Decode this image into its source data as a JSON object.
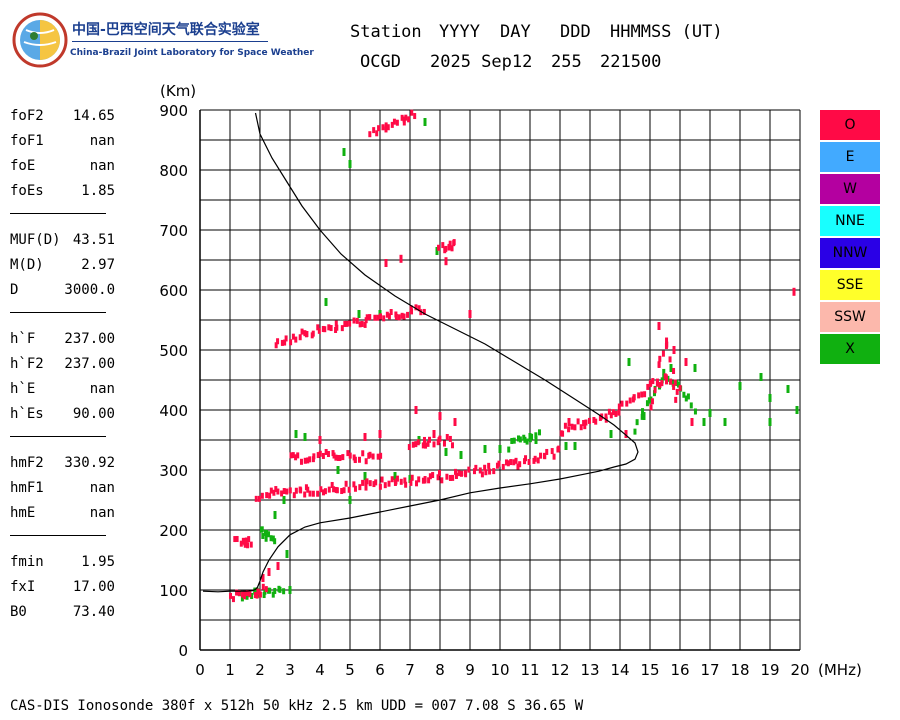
{
  "logo": {
    "chinese_name": "中国-巴西空间天气联合实验室",
    "english_name": "China-Brazil Joint Laboratory for Space Weather"
  },
  "header": {
    "labels": [
      "Station",
      "YYYY",
      "DAY",
      "DDD",
      "HHMMSS (UT)"
    ],
    "values": [
      "OCGD",
      "2025 Sep12",
      "255",
      "221500"
    ]
  },
  "params": {
    "groups": [
      [
        {
          "name": "foF2",
          "value": "14.65"
        },
        {
          "name": "foF1",
          "value": "nan"
        },
        {
          "name": "foE",
          "value": "nan"
        },
        {
          "name": "foEs",
          "value": "1.85"
        }
      ],
      [
        {
          "name": "MUF(D)",
          "value": "43.51"
        },
        {
          "name": "M(D)",
          "value": "2.97"
        },
        {
          "name": "D",
          "value": "3000.0"
        }
      ],
      [
        {
          "name": "h`F",
          "value": "237.00"
        },
        {
          "name": "h`F2",
          "value": "237.00"
        },
        {
          "name": "h`E",
          "value": "nan"
        },
        {
          "name": "h`Es",
          "value": "90.00"
        }
      ],
      [
        {
          "name": "hmF2",
          "value": "330.92"
        },
        {
          "name": "hmF1",
          "value": "nan"
        },
        {
          "name": "hmE",
          "value": "nan"
        }
      ],
      [
        {
          "name": "fmin",
          "value": "1.95"
        },
        {
          "name": "fxI",
          "value": "17.00"
        },
        {
          "name": "B0",
          "value": "73.40"
        }
      ]
    ]
  },
  "legend": [
    {
      "label": "O",
      "color": "#ff0a46"
    },
    {
      "label": "E",
      "color": "#42aaff"
    },
    {
      "label": "W",
      "color": "#b400a0"
    },
    {
      "label": "NNE",
      "color": "#18ffff"
    },
    {
      "label": "NNW",
      "color": "#2a00e6"
    },
    {
      "label": "SSE",
      "color": "#ffff2a"
    },
    {
      "label": "SSW",
      "color": "#fcb8ac"
    },
    {
      "label": "X",
      "color": "#10b010"
    }
  ],
  "footer": "CAS-DIS Ionosonde 380f x 512h 50 kHz 2.5 km UDD = 007 7.08 S 36.65 W",
  "chart_data": {
    "type": "scatter",
    "xlabel": "(MHz)",
    "ylabel": "(Km)",
    "xlim": [
      0,
      20
    ],
    "ylim": [
      0,
      900
    ],
    "xticks": [
      0,
      1,
      2,
      3,
      4,
      5,
      6,
      7,
      8,
      9,
      10,
      11,
      12,
      13,
      14,
      15,
      16,
      17,
      18,
      19,
      20
    ],
    "yticks": [
      0,
      100,
      200,
      300,
      400,
      500,
      600,
      700,
      800,
      900
    ],
    "grid": true,
    "series": [
      {
        "name": "O",
        "traces": [
          {
            "x": [
              1.0,
              1.5,
              1.9,
              2.2
            ],
            "y": [
              90,
              92,
              95,
              100
            ]
          },
          {
            "x": [
              1.2,
              1.5,
              1.7
            ],
            "y": [
              180,
              180,
              182
            ]
          },
          {
            "x": [
              1.9,
              2.5,
              3.5,
              4.5,
              5.5,
              6.5,
              7.5,
              8.5,
              9.5,
              10.5,
              11.5,
              12.0
            ],
            "y": [
              255,
              262,
              265,
              270,
              275,
              280,
              285,
              292,
              300,
              310,
              322,
              332
            ]
          },
          {
            "x": [
              12.0,
              12.8,
              13.5,
              14.0,
              14.5,
              15.0,
              15.5,
              16.0
            ],
            "y": [
              365,
              378,
              390,
              400,
              420,
              440,
              450,
              430
            ]
          },
          {
            "x": [
              3.0,
              3.8,
              4.5,
              5.2,
              6.0
            ],
            "y": [
              318,
              322,
              325,
              322,
              320
            ]
          },
          {
            "x": [
              7.0,
              7.5,
              8.0,
              8.4
            ],
            "y": [
              340,
              345,
              352,
              345
            ]
          },
          {
            "x": [
              2.5,
              3.5,
              4.5,
              5.5,
              6.5,
              7.5
            ],
            "y": [
              510,
              528,
              538,
              548,
              558,
              568
            ]
          },
          {
            "x": [
              5.7,
              6.2,
              6.8,
              7.2
            ],
            "y": [
              860,
              870,
              885,
              895
            ]
          },
          {
            "x": [
              8.0,
              8.3,
              8.5
            ],
            "y": [
              668,
              672,
              676
            ]
          },
          {
            "x": [
              15.0,
              15.3,
              15.6,
              15.9
            ],
            "y": [
              400,
              470,
              510,
              420
            ]
          }
        ],
        "points": [
          [
            1.5,
            180
          ],
          [
            2.1,
            120
          ],
          [
            2.3,
            130
          ],
          [
            2.6,
            140
          ],
          [
            4.0,
            350
          ],
          [
            5.5,
            355
          ],
          [
            6.0,
            360
          ],
          [
            7.2,
            400
          ],
          [
            8.0,
            390
          ],
          [
            8.5,
            380
          ],
          [
            6.2,
            645
          ],
          [
            6.7,
            652
          ],
          [
            8.2,
            648
          ],
          [
            9.0,
            560
          ],
          [
            19.8,
            597
          ],
          [
            15.3,
            540
          ],
          [
            15.8,
            500
          ],
          [
            16.2,
            480
          ],
          [
            16.4,
            380
          ],
          [
            14.2,
            360
          ],
          [
            12.3,
            380
          ],
          [
            7.8,
            360
          ]
        ]
      },
      {
        "name": "X",
        "traces": [
          {
            "x": [
              1.3,
              1.8,
              2.3,
              2.8
            ],
            "y": [
              92,
              95,
              97,
              98
            ]
          },
          {
            "x": [
              2.0,
              2.2,
              2.5
            ],
            "y": [
              200,
              190,
              180
            ]
          },
          {
            "x": [
              10.3,
              10.8,
              11.3
            ],
            "y": [
              340,
              350,
              360
            ]
          },
          {
            "x": [
              14.5,
              15.0,
              15.5,
              16.0,
              16.5
            ],
            "y": [
              370,
              420,
              460,
              440,
              400
            ]
          }
        ],
        "points": [
          [
            2.5,
            225
          ],
          [
            2.8,
            250
          ],
          [
            2.9,
            160
          ],
          [
            3.0,
            100
          ],
          [
            3.2,
            360
          ],
          [
            3.5,
            355
          ],
          [
            5.0,
            250
          ],
          [
            5.5,
            290
          ],
          [
            6.5,
            290
          ],
          [
            7.0,
            285
          ],
          [
            7.3,
            350
          ],
          [
            8.7,
            325
          ],
          [
            9.5,
            335
          ],
          [
            10.0,
            335
          ],
          [
            11.0,
            355
          ],
          [
            11.2,
            350
          ],
          [
            12.2,
            340
          ],
          [
            12.5,
            340
          ],
          [
            13.7,
            360
          ],
          [
            15.7,
            470
          ],
          [
            16.8,
            380
          ],
          [
            17.0,
            395
          ],
          [
            18.0,
            440
          ],
          [
            18.7,
            455
          ],
          [
            19.0,
            420
          ],
          [
            19.6,
            435
          ],
          [
            19.9,
            400
          ],
          [
            17.5,
            380
          ],
          [
            16.5,
            470
          ],
          [
            4.2,
            580
          ],
          [
            5.3,
            560
          ],
          [
            6.0,
            560
          ],
          [
            4.8,
            830
          ],
          [
            5.0,
            810
          ],
          [
            7.5,
            880
          ],
          [
            7.9,
            665
          ],
          [
            14.3,
            480
          ],
          [
            14.8,
            390
          ],
          [
            8.2,
            330
          ],
          [
            4.6,
            300
          ],
          [
            19.0,
            380
          ]
        ]
      }
    ],
    "reference_curves": [
      {
        "x": [
          0.1,
          0.6,
          1.0,
          1.3,
          1.5,
          1.75,
          1.85,
          1.92,
          2.0,
          2.1,
          2.3,
          2.6,
          3.0,
          3.5,
          4.0,
          5.0,
          6.0,
          7.0,
          8.0,
          9.0,
          10.0,
          11.0,
          12.0,
          12.7,
          13.3,
          13.8,
          14.2,
          14.5,
          14.6,
          14.5,
          14.2,
          13.8,
          13.3,
          12.5,
          11.5,
          10.5,
          9.5,
          8.5,
          7.5,
          6.5,
          5.5,
          4.7,
          4.0,
          3.4,
          2.9,
          2.4,
          2.0,
          1.85
        ],
        "y": [
          98,
          97,
          98,
          98,
          98,
          99,
          101,
          105,
          115,
          130,
          150,
          172,
          192,
          205,
          212,
          220,
          230,
          240,
          250,
          262,
          270,
          277,
          285,
          292,
          298,
          305,
          310,
          318,
          330,
          345,
          358,
          375,
          392,
          418,
          450,
          480,
          510,
          535,
          560,
          590,
          625,
          660,
          700,
          740,
          780,
          820,
          860,
          895
        ]
      }
    ]
  }
}
